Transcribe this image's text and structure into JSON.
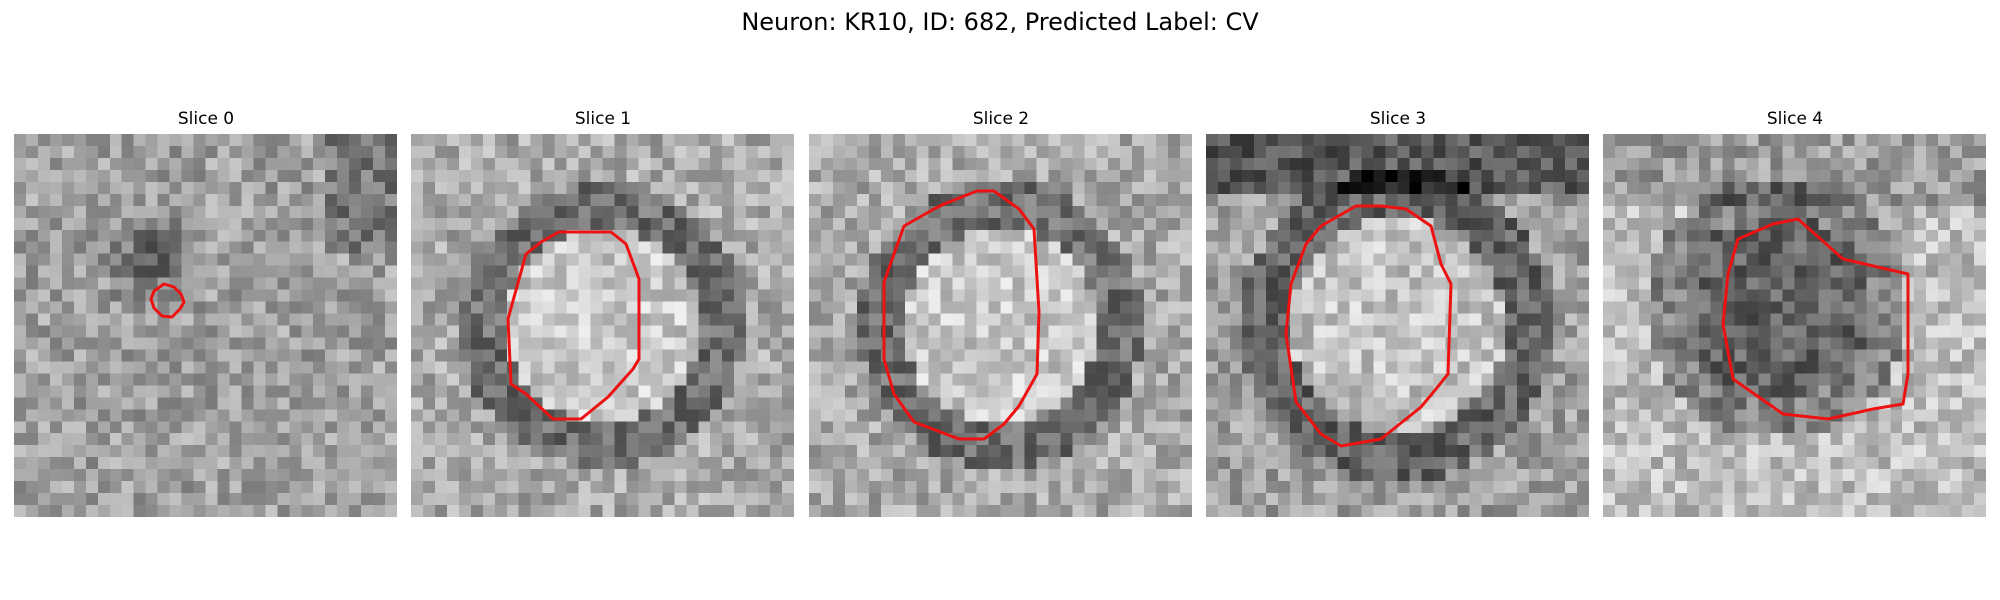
{
  "figure": {
    "title": "Neuron: KR10, ID: 682, Predicted Label: CV"
  },
  "panels": [
    {
      "title": "Slice 0",
      "outline_color": "#ee1111",
      "texture": "dark-blob-center"
    },
    {
      "title": "Slice 1",
      "outline_color": "#ee1111",
      "texture": "bright-disk-dark-ring"
    },
    {
      "title": "Slice 2",
      "outline_color": "#ee1111",
      "texture": "bright-disk-dark-ring"
    },
    {
      "title": "Slice 3",
      "outline_color": "#ee1111",
      "texture": "bright-disk-dark-ring-dark-top"
    },
    {
      "title": "Slice 4",
      "outline_color": "#ee1111",
      "texture": "dark-interior-bright-surround"
    }
  ]
}
